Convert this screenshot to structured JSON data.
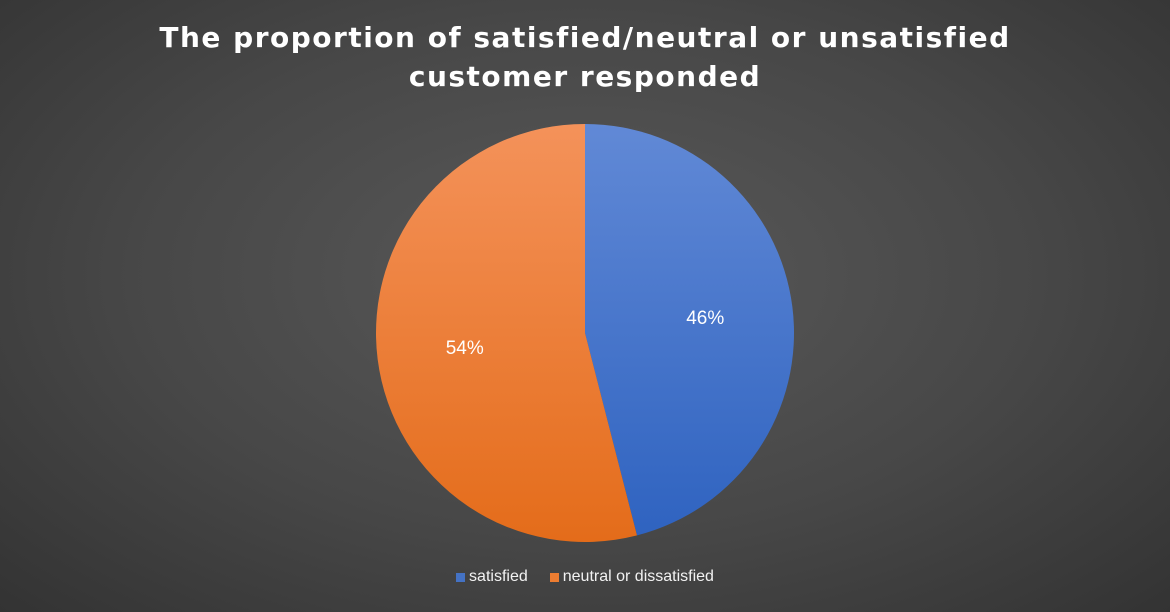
{
  "chart_data": {
    "type": "pie",
    "title": "The proportion of satisfied/neutral or unsatisfied customer responded",
    "categories": [
      "satisfied",
      "neutral or dissatisfied"
    ],
    "values": [
      46,
      54
    ],
    "data_labels": [
      "46%",
      "54%"
    ],
    "colors": [
      "#4472C4",
      "#ED7D31"
    ],
    "start_angle_deg": 0,
    "direction": "clockwise",
    "legend": {
      "position": "bottom",
      "entries": [
        "satisfied",
        "neutral or dissatisfied"
      ]
    }
  }
}
